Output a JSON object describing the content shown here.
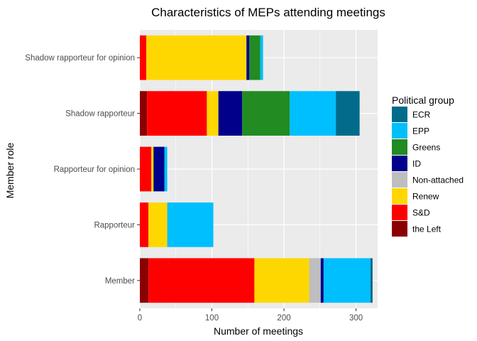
{
  "chart_data": {
    "type": "bar",
    "orientation": "horizontal",
    "stacked": true,
    "title": "Characteristics of MEPs attending meetings",
    "xlabel": "Number of meetings",
    "ylabel": "Member role",
    "xlim": [
      0,
      330
    ],
    "x_ticks": [
      0,
      100,
      200,
      300
    ],
    "grid": true,
    "legend_position": "right",
    "legend_title": "Political group",
    "categories": [
      "Member",
      "Rapporteur",
      "Rapporteur for opinion",
      "Shadow rapporteur",
      "Shadow rapporteur for opinion"
    ],
    "series": [
      {
        "name": "the Left",
        "color": "#8B0000",
        "values": [
          12,
          0,
          0,
          10,
          0
        ]
      },
      {
        "name": "S&D",
        "color": "#FF0000",
        "values": [
          147,
          12,
          16,
          83,
          9
        ]
      },
      {
        "name": "Renew",
        "color": "#FFD700",
        "values": [
          76,
          26,
          3,
          16,
          139
        ]
      },
      {
        "name": "Non-attached",
        "color": "#BEBEBE",
        "values": [
          16,
          0,
          0,
          0,
          0
        ]
      },
      {
        "name": "ID",
        "color": "#00008B",
        "values": [
          4,
          0,
          15,
          33,
          4
        ]
      },
      {
        "name": "Greens",
        "color": "#228B22",
        "values": [
          0,
          0,
          0,
          66,
          15
        ]
      },
      {
        "name": "EPP",
        "color": "#00BFFF",
        "values": [
          65,
          64,
          4,
          64,
          4
        ]
      },
      {
        "name": "ECR",
        "color": "#006B8B",
        "values": [
          3,
          0,
          0,
          33,
          0
        ]
      }
    ],
    "legend_order": [
      "ECR",
      "EPP",
      "Greens",
      "ID",
      "Non-attached",
      "Renew",
      "S&D",
      "the Left"
    ]
  }
}
